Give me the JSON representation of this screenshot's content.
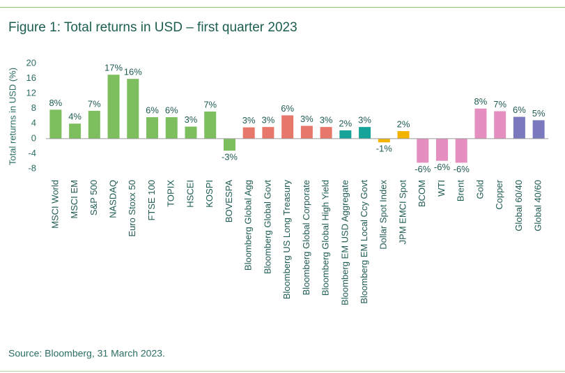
{
  "chart_data": {
    "type": "bar",
    "title": "Figure 1: Total returns in USD – first quarter 2023",
    "y_label": "Total returns in USD (%)",
    "source": "Source: Bloomberg, 31 March 2023.",
    "categories": [
      "MSCI World",
      "MSCI EM",
      "S&P 500",
      "NASDAQ",
      "Euro Stoxx 50",
      "FTSE 100",
      "TOPIX",
      "HSCEI",
      "KOSPI",
      "BOVESPA",
      "Bloomberg Global Agg",
      "Bloomberg Global Govt",
      "Bloomberg US Long Treasury",
      "Bloomberg Global Corporate",
      "Bloomberg Global High Yield",
      "Bloomberg EM USD Aggregate",
      "Bloomberg EM Local Ccy Govt",
      "Dollar Spot Index",
      "JPM EMCI Spot",
      "BCOM",
      "WTI",
      "Brent",
      "Gold",
      "Copper",
      "Global 60/40",
      "Global 40/60"
    ],
    "values": [
      7.7,
      4.0,
      7.4,
      17.0,
      15.9,
      5.7,
      5.7,
      3.2,
      7.2,
      -3.2,
      3.0,
      3.1,
      6.2,
      3.4,
      3.1,
      2.2,
      3.1,
      -1.0,
      2.0,
      -6.4,
      -5.9,
      -6.4,
      8.0,
      7.3,
      5.8,
      4.9
    ],
    "value_labels": [
      "8%",
      "4%",
      "7%",
      "17%",
      "16%",
      "6%",
      "6%",
      "3%",
      "7%",
      "-3%",
      "3%",
      "3%",
      "6%",
      "3%",
      "3%",
      "2%",
      "3%",
      "-1%",
      "2%",
      "-6%",
      "-6%",
      "-6%",
      "8%",
      "7%",
      "6%",
      "5%"
    ],
    "colors": [
      "#7dbf5e",
      "#7dbf5e",
      "#7dbf5e",
      "#7dbf5e",
      "#7dbf5e",
      "#7dbf5e",
      "#7dbf5e",
      "#7dbf5e",
      "#7dbf5e",
      "#7dbf5e",
      "#e8776b",
      "#e8776b",
      "#e8776b",
      "#e8776b",
      "#e8776b",
      "#16a39a",
      "#16a39a",
      "#f2b400",
      "#f2b400",
      "#e58fc0",
      "#e58fc0",
      "#e58fc0",
      "#e58fc0",
      "#e58fc0",
      "#7a79be",
      "#7a79be"
    ],
    "ylim": [
      -8,
      20
    ],
    "yticks": [
      -8,
      -4,
      0,
      4,
      8,
      12,
      16,
      20
    ]
  }
}
